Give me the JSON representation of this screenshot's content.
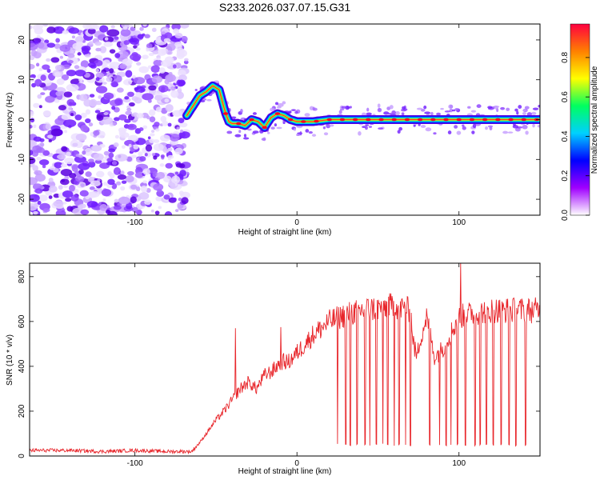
{
  "figure_title": "S233.2026.037.07.15.G31",
  "chart_data": [
    {
      "type": "heatmap",
      "xlabel": "Height of straight line (km)",
      "ylabel": "Frequency (Hz)",
      "xlim": [
        -165,
        150
      ],
      "ylim": [
        -24,
        24
      ],
      "x_ticks": [
        -100,
        0,
        100
      ],
      "y_ticks": [
        -20,
        -10,
        0,
        10,
        20
      ],
      "colorbar": {
        "label": "Normalized spectral amplitude",
        "ticks": [
          "0.0",
          "0.2",
          "0.4",
          "0.6",
          "0.8"
        ],
        "range": [
          0,
          0.97
        ],
        "colors": [
          "#ffffff",
          "#a000ff",
          "#0000ff",
          "#00d0ff",
          "#00ff60",
          "#ffff00",
          "#ff8000",
          "#ff0040"
        ]
      },
      "noise_region_x": [
        -165,
        -68
      ],
      "ridge": {
        "x": [
          -68,
          -64,
          -60,
          -56,
          -52,
          -48,
          -46,
          -44,
          -42,
          -40,
          -36,
          -32,
          -28,
          -24,
          -20,
          -16,
          -12,
          -8,
          -4,
          0,
          5,
          10,
          20,
          40,
          60,
          80,
          100,
          120,
          150
        ],
        "y": [
          1,
          3.5,
          6,
          7,
          8.5,
          7.5,
          4.5,
          1.5,
          -0.5,
          -1,
          -1,
          -1.5,
          0,
          -0.5,
          -2,
          0.5,
          1.5,
          1,
          0,
          -0.5,
          -0.5,
          -0.5,
          0,
          0,
          0,
          0,
          0,
          0,
          0
        ]
      }
    },
    {
      "type": "line",
      "xlabel": "Height of straight line (km)",
      "ylabel": "SNR (10 * v/v)",
      "xlim": [
        -165,
        150
      ],
      "ylim": [
        0,
        860
      ],
      "x_ticks": [
        -100,
        0,
        100
      ],
      "y_ticks": [
        0,
        200,
        400,
        600,
        800
      ],
      "color": "#e8262b",
      "x": [
        -165,
        -140,
        -120,
        -100,
        -80,
        -65,
        -60,
        -55,
        -50,
        -45,
        -40,
        -35,
        -30,
        -25,
        -20,
        -15,
        -10,
        -5,
        0,
        10,
        20,
        30,
        40,
        50,
        60,
        70,
        72,
        74,
        76,
        80,
        85,
        90,
        100,
        110,
        120,
        130,
        140,
        150
      ],
      "y": [
        25,
        25,
        20,
        25,
        20,
        20,
        60,
        110,
        160,
        200,
        250,
        300,
        330,
        300,
        360,
        380,
        420,
        420,
        460,
        540,
        600,
        630,
        650,
        660,
        670,
        650,
        500,
        440,
        520,
        620,
        440,
        480,
        620,
        640,
        650,
        650,
        650,
        650
      ],
      "dropouts_x": [
        25,
        30,
        33,
        37,
        42,
        45,
        49,
        53,
        56,
        60,
        63,
        67,
        70,
        82,
        88,
        92,
        95,
        99,
        104,
        110,
        113,
        117,
        121,
        126,
        131,
        135,
        141
      ],
      "spikes": [
        {
          "x": -38,
          "y": 570
        },
        {
          "x": -10,
          "y": 575
        },
        {
          "x": 101,
          "y": 860
        }
      ]
    }
  ]
}
